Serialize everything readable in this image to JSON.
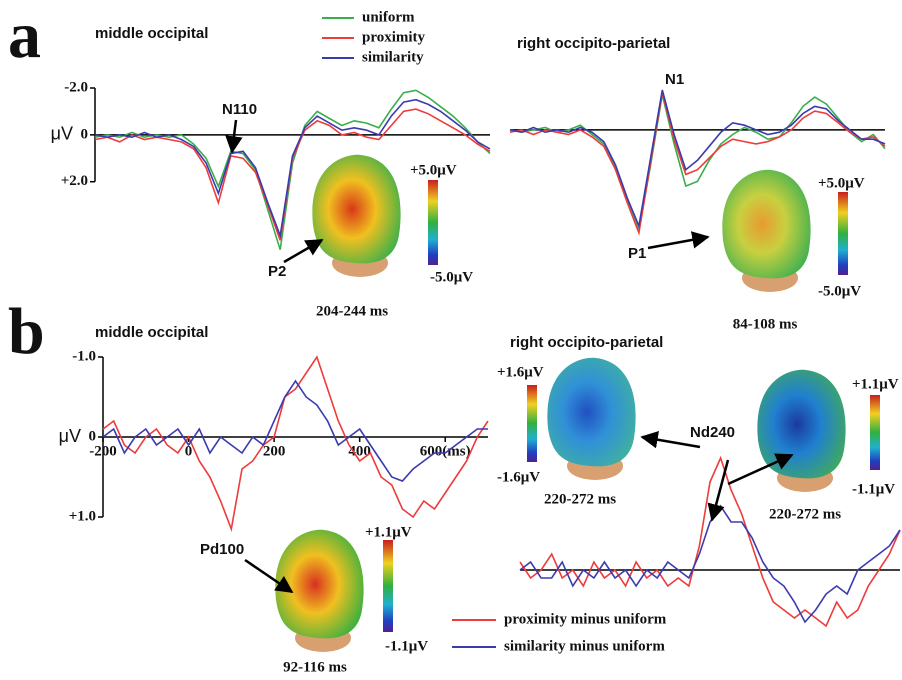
{
  "chart_data": [
    {
      "type": "line",
      "panel": "a",
      "title": "middle occipital",
      "y_unit": "μV",
      "xlim": [
        -100,
        700
      ],
      "ylim": [
        5,
        -2
      ],
      "yticks": [
        {
          "value": -2,
          "label": "-2.0"
        },
        0,
        {
          "value": 2,
          "label": "+2.0"
        }
      ],
      "x": [
        -100,
        -75,
        -50,
        -25,
        0,
        25,
        50,
        75,
        100,
        125,
        150,
        175,
        200,
        225,
        250,
        275,
        300,
        325,
        350,
        375,
        400,
        425,
        450,
        475,
        500,
        525,
        550,
        575,
        600,
        625,
        650,
        675,
        700
      ],
      "series": [
        {
          "name": "uniform",
          "color": "#3aae4a",
          "values": [
            0.1,
            0,
            0.1,
            -0.1,
            0.1,
            0,
            0.1,
            0,
            0.4,
            1.0,
            2.2,
            0.7,
            0.8,
            1.5,
            3.2,
            4.9,
            1.2,
            -0.4,
            -1.0,
            -0.7,
            -0.4,
            -0.6,
            -0.5,
            -0.3,
            -1.1,
            -1.8,
            -1.9,
            -1.6,
            -1.2,
            -0.8,
            -0.3,
            0.3,
            0.8
          ]
        },
        {
          "name": "proximity",
          "color": "#ee3b3b",
          "values": [
            0.2,
            0.1,
            0.3,
            0,
            0.2,
            0.1,
            0.2,
            0.3,
            0.6,
            1.4,
            2.9,
            0.9,
            1.0,
            1.6,
            3.0,
            4.5,
            1.0,
            -0.2,
            -0.6,
            -0.4,
            0,
            -0.1,
            0.1,
            0.2,
            -0.4,
            -1.0,
            -1.1,
            -0.9,
            -0.6,
            -0.3,
            0,
            0.4,
            0.7
          ]
        },
        {
          "name": "similarity",
          "color": "#3b3bb0",
          "values": [
            0,
            0.1,
            0,
            0.1,
            -0.1,
            0.1,
            0,
            0.2,
            0.5,
            1.2,
            2.5,
            0.8,
            0.7,
            1.4,
            2.9,
            4.3,
            0.9,
            -0.3,
            -0.8,
            -0.5,
            -0.2,
            -0.3,
            -0.2,
            0,
            -0.8,
            -1.4,
            -1.5,
            -1.3,
            -1.0,
            -0.6,
            -0.2,
            0.3,
            0.6
          ]
        }
      ],
      "annotations": [
        "N110",
        "P2"
      ],
      "scalp_maps": [
        {
          "max_label": "+5.0μV",
          "min_label": "-5.0μV",
          "window": "204-244 ms"
        }
      ]
    },
    {
      "type": "line",
      "title": "right occipito-parietal",
      "xlim": [
        -100,
        700
      ],
      "ylim": [
        5,
        -2
      ],
      "x": [
        -100,
        -75,
        -50,
        -25,
        0,
        25,
        50,
        75,
        100,
        125,
        150,
        175,
        200,
        225,
        250,
        275,
        300,
        325,
        350,
        375,
        400,
        425,
        450,
        475,
        500,
        525,
        550,
        575,
        600,
        625,
        650,
        675,
        700
      ],
      "series": [
        {
          "color": "#3aae4a",
          "values": [
            0,
            0.1,
            0,
            -0.1,
            0.1,
            0,
            -0.2,
            0.2,
            0.6,
            1.6,
            3.0,
            4.3,
            1.5,
            -1.5,
            0.6,
            2.4,
            2.2,
            1.3,
            0.6,
            0.2,
            -0.1,
            0.1,
            0.4,
            0.3,
            -0.3,
            -1.0,
            -1.4,
            -1.1,
            -0.5,
            0.1,
            0.5,
            0.2,
            0.8
          ]
        },
        {
          "color": "#ee3b3b",
          "values": [
            0.1,
            0,
            0.2,
            0,
            0.1,
            0.2,
            0,
            0.3,
            0.7,
            1.7,
            3.1,
            4.4,
            1.4,
            -1.6,
            0.4,
            1.9,
            1.7,
            1.2,
            0.7,
            0.4,
            0.5,
            0.6,
            0.5,
            0.3,
            0,
            -0.5,
            -0.8,
            -0.7,
            -0.3,
            0.1,
            0.4,
            0.3,
            0.7
          ]
        },
        {
          "color": "#3b3bb0",
          "values": [
            0,
            0.1,
            -0.1,
            0.1,
            0,
            0.1,
            -0.1,
            0.1,
            0.5,
            1.5,
            2.9,
            4.1,
            1.2,
            -1.7,
            0.2,
            1.7,
            1.3,
            0.7,
            0.1,
            -0.3,
            -0.2,
            0,
            0.2,
            0.1,
            -0.2,
            -0.7,
            -1.0,
            -0.9,
            -0.4,
            0,
            0.4,
            0.4,
            0.6
          ]
        }
      ],
      "annotations": [
        "N1",
        "P1"
      ],
      "scalp_maps": [
        {
          "max_label": "+5.0μV",
          "min_label": "-5.0μV",
          "window": "84-108 ms"
        }
      ]
    },
    {
      "type": "line",
      "panel": "b",
      "title": "middle occipital",
      "y_unit": "μV",
      "xlim": [
        -200,
        700
      ],
      "ylim": [
        1.2,
        -1.0
      ],
      "yticks": [
        {
          "value": -1,
          "label": "-1.0"
        },
        0,
        {
          "value": 1,
          "label": "+1.0"
        }
      ],
      "xticks": [
        -200,
        0,
        200,
        400,
        {
          "value": 600,
          "label": "600(ms)"
        }
      ],
      "x": [
        -200,
        -175,
        -150,
        -125,
        -100,
        -75,
        -50,
        -25,
        0,
        25,
        50,
        75,
        100,
        125,
        150,
        175,
        200,
        225,
        250,
        275,
        300,
        325,
        350,
        375,
        400,
        425,
        450,
        475,
        500,
        525,
        550,
        575,
        600,
        625,
        650,
        675,
        700
      ],
      "series": [
        {
          "name": "proximity minus uniform",
          "color": "#ee3b3b",
          "values": [
            -0.1,
            -0.2,
            0.1,
            0.2,
            0,
            -0.1,
            0.1,
            0.2,
            0,
            0.3,
            0.5,
            0.8,
            1.15,
            0.4,
            0.3,
            0.1,
            0,
            -0.5,
            -0.6,
            -0.8,
            -1.0,
            -0.6,
            -0.2,
            0.1,
            0.3,
            0.2,
            0.5,
            0.6,
            0.9,
            1.0,
            0.8,
            0.9,
            0.7,
            0.5,
            0.3,
            0,
            -0.2
          ]
        },
        {
          "name": "similarity minus uniform",
          "color": "#3b3bb0",
          "values": [
            0,
            -0.1,
            0.2,
            0,
            -0.1,
            0.1,
            0,
            -0.1,
            0.1,
            -0.1,
            0.2,
            0,
            0.1,
            0.2,
            0,
            0.1,
            -0.2,
            -0.5,
            -0.7,
            -0.5,
            -0.4,
            -0.2,
            0.1,
            0,
            -0.1,
            0.1,
            0.3,
            0.5,
            0.55,
            0.4,
            0.3,
            0.2,
            0.2,
            0.1,
            0,
            -0.1,
            -0.1
          ]
        }
      ],
      "annotations": [
        "Pd100"
      ],
      "scalp_maps": [
        {
          "max_label": "+1.1μV",
          "min_label": "-1.1μV",
          "window": "92-116 ms"
        }
      ]
    },
    {
      "type": "line",
      "title": "right occipito-parietal",
      "xlim": [
        -200,
        700
      ],
      "ylim": [
        1.0,
        -1.6
      ],
      "x": [
        -200,
        -175,
        -150,
        -125,
        -100,
        -75,
        -50,
        -25,
        0,
        25,
        50,
        75,
        100,
        125,
        150,
        175,
        200,
        225,
        250,
        275,
        300,
        325,
        350,
        375,
        400,
        425,
        450,
        475,
        500,
        525,
        550,
        575,
        600,
        625,
        650,
        675,
        700
      ],
      "series": [
        {
          "color": "#ee3b3b",
          "values": [
            -0.1,
            0.1,
            0,
            -0.2,
            0.1,
            0,
            0.2,
            -0.1,
            0.1,
            0,
            0.2,
            -0.1,
            0.1,
            0,
            0.2,
            0.1,
            0.2,
            -0.3,
            -1.1,
            -1.4,
            -1.0,
            -0.7,
            -0.3,
            0.1,
            0.4,
            0.5,
            0.6,
            0.5,
            0.6,
            0.7,
            0.4,
            0.6,
            0.5,
            0.2,
            0,
            -0.2,
            -0.5
          ]
        },
        {
          "color": "#3b3bb0",
          "values": [
            0,
            -0.1,
            0.1,
            0.1,
            -0.1,
            0.2,
            0,
            0.1,
            -0.1,
            0.1,
            0,
            0.2,
            0,
            0.1,
            -0.1,
            0,
            0.1,
            -0.2,
            -0.6,
            -0.8,
            -0.6,
            -0.6,
            -0.4,
            -0.1,
            0.1,
            0.2,
            0.4,
            0.65,
            0.5,
            0.3,
            0.2,
            0.3,
            0,
            -0.1,
            -0.2,
            -0.3,
            -0.5
          ]
        }
      ],
      "annotations": [
        "Nd240"
      ],
      "scalp_maps": [
        {
          "max_label": "+1.6μV",
          "min_label": "-1.6μV",
          "window": "220-272 ms"
        },
        {
          "max_label": "+1.1μV",
          "min_label": "-1.1μV",
          "window": "220-272 ms"
        }
      ]
    }
  ]
}
